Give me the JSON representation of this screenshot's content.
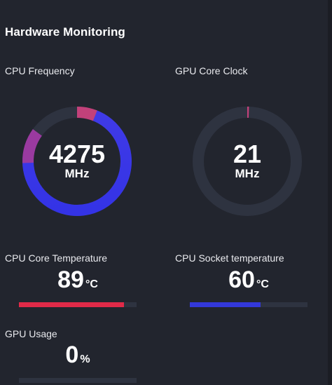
{
  "title": "Hardware Monitoring",
  "colors": {
    "background": "#22252e",
    "track": "#2e3340",
    "gradient_start": "#c2417a",
    "gradient_end": "#3433e6",
    "temperature_bar": "#e12a48",
    "socket_bar": "#3338d9"
  },
  "gauges": {
    "cpu_frequency": {
      "label": "CPU Frequency",
      "value": "4275",
      "unit": "MHz",
      "fill_fraction": 0.85
    },
    "gpu_core_clock": {
      "label": "GPU Core Clock",
      "value": "21",
      "unit": "MHz",
      "fill_fraction": 0.005
    }
  },
  "bars": {
    "cpu_core_temperature": {
      "label": "CPU Core Temperature",
      "value": "89",
      "unit": "°C",
      "fill_fraction": 0.89
    },
    "cpu_socket_temperature": {
      "label": "CPU Socket temperature",
      "value": "60",
      "unit": "°C",
      "fill_fraction": 0.6
    },
    "gpu_usage": {
      "label": "GPU Usage",
      "value": "0",
      "unit": "%",
      "fill_fraction": 0.0
    }
  }
}
